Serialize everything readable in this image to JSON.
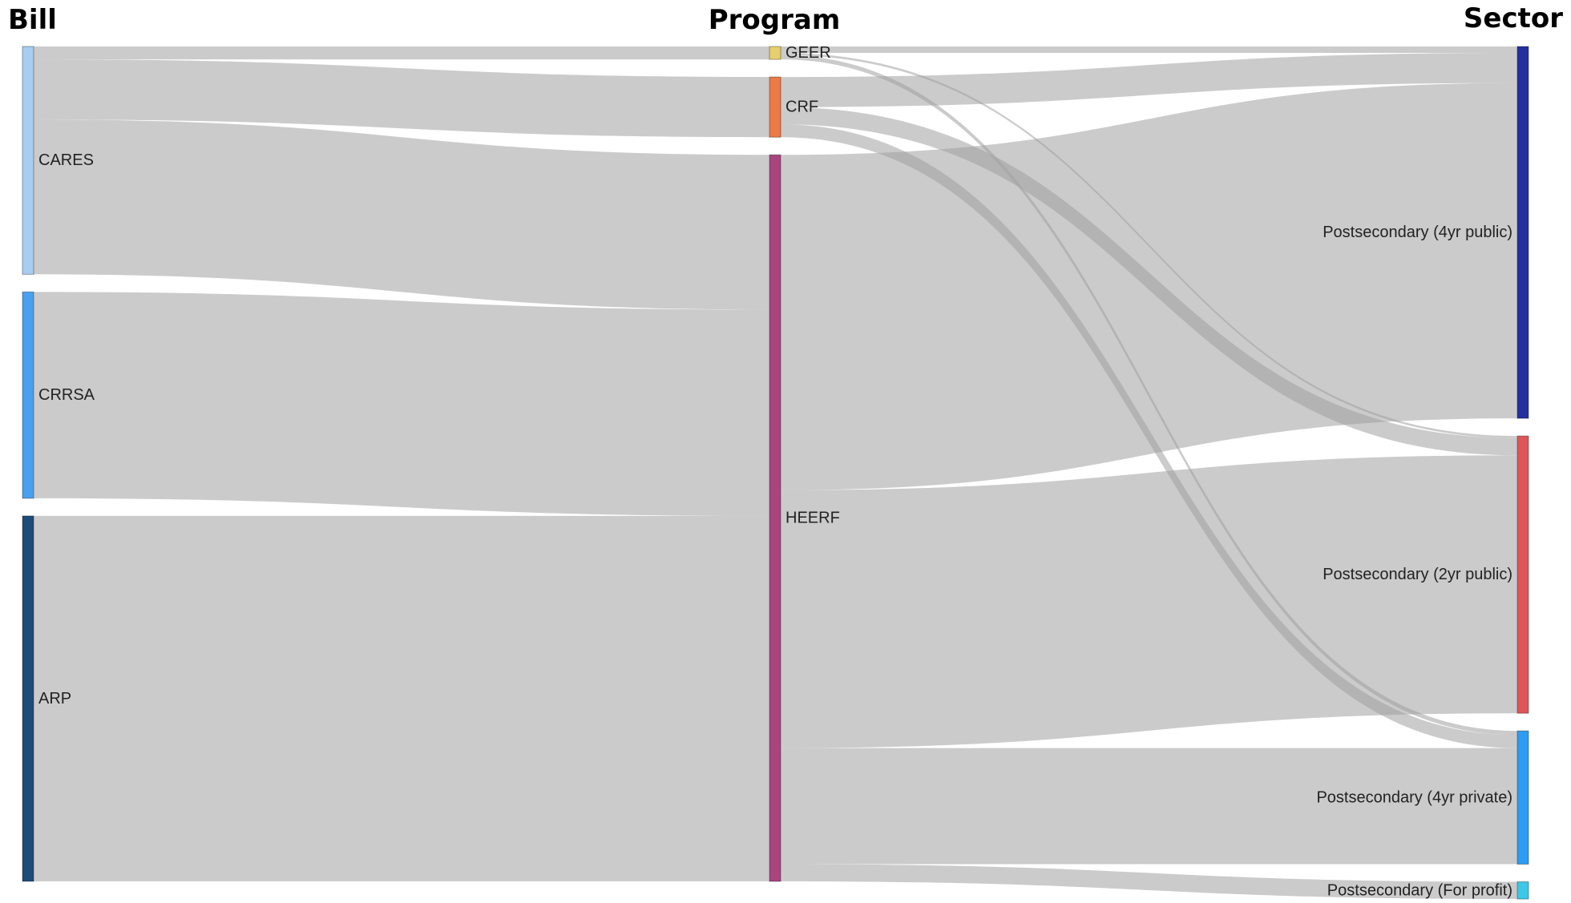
{
  "columns": [
    {
      "key": "bill",
      "title": "Bill"
    },
    {
      "key": "program",
      "title": "Program"
    },
    {
      "key": "sector",
      "title": "Sector"
    }
  ],
  "nodes": [
    {
      "id": "cares",
      "label": "CARES",
      "column": "bill",
      "color": "#a8cdf0"
    },
    {
      "id": "crrsa",
      "label": "CRRSA",
      "column": "bill",
      "color": "#4aa0ee"
    },
    {
      "id": "arp",
      "label": "ARP",
      "column": "bill",
      "color": "#1e4c7a"
    },
    {
      "id": "geer",
      "label": "GEER",
      "column": "program",
      "color": "#e6cf6c"
    },
    {
      "id": "crf",
      "label": "CRF",
      "column": "program",
      "color": "#ec7a44"
    },
    {
      "id": "heerf",
      "label": "HEERF",
      "column": "program",
      "color": "#a8457e"
    },
    {
      "id": "pub4",
      "label": "Postsecondary (4yr public)",
      "column": "sector",
      "color": "#2430a0"
    },
    {
      "id": "pub2",
      "label": "Postsecondary (2yr public)",
      "column": "sector",
      "color": "#de565a"
    },
    {
      "id": "priv4",
      "label": "Postsecondary (4yr private)",
      "column": "sector",
      "color": "#2e9cf2"
    },
    {
      "id": "forprofit",
      "label": "Postsecondary (For profit)",
      "column": "sector",
      "color": "#3cc8e6"
    }
  ],
  "links": [
    {
      "source": "cares",
      "target": "geer",
      "value": 3
    },
    {
      "source": "cares",
      "target": "crf",
      "value": 14
    },
    {
      "source": "cares",
      "target": "heerf",
      "value": 36
    },
    {
      "source": "crrsa",
      "target": "heerf",
      "value": 48
    },
    {
      "source": "arp",
      "target": "heerf",
      "value": 85
    },
    {
      "source": "geer",
      "target": "pub4",
      "value": 1.5
    },
    {
      "source": "geer",
      "target": "pub2",
      "value": 0.5
    },
    {
      "source": "geer",
      "target": "priv4",
      "value": 1.0
    },
    {
      "source": "crf",
      "target": "pub4",
      "value": 7
    },
    {
      "source": "crf",
      "target": "pub2",
      "value": 4
    },
    {
      "source": "crf",
      "target": "priv4",
      "value": 3
    },
    {
      "source": "heerf",
      "target": "pub4",
      "value": 78
    },
    {
      "source": "heerf",
      "target": "pub2",
      "value": 60
    },
    {
      "source": "heerf",
      "target": "priv4",
      "value": 27
    },
    {
      "source": "heerf",
      "target": "forprofit",
      "value": 4
    }
  ]
}
